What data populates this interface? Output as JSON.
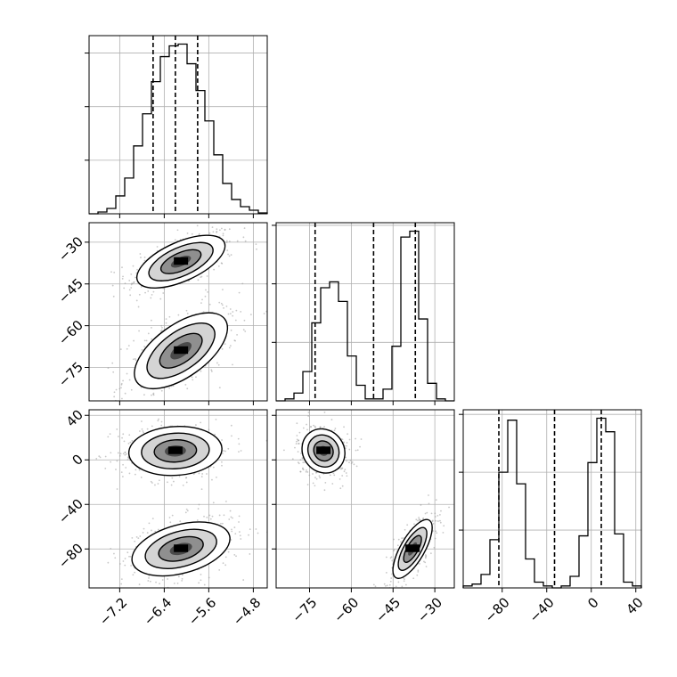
{
  "chart_data": {
    "type": "corner",
    "parameters": [
      "p0",
      "p1",
      "p2"
    ],
    "grid": true,
    "colors": {
      "line": "#000000",
      "grid": "#b0b0b0",
      "points": "#9a9a9a"
    },
    "histograms": [
      {
        "param": "p0",
        "xlim": [
          -7.75,
          -4.55
        ],
        "edges": [
          -7.75,
          -7.59,
          -7.43,
          -7.27,
          -7.11,
          -6.95,
          -6.79,
          -6.63,
          -6.47,
          -6.31,
          -6.15,
          -5.99,
          -5.83,
          -5.67,
          -5.51,
          -5.35,
          -5.19,
          -5.03,
          -4.87,
          -4.71,
          -4.55
        ],
        "counts": [
          0,
          0.01,
          0.03,
          0.1,
          0.2,
          0.38,
          0.56,
          0.74,
          0.88,
          0.94,
          0.95,
          0.84,
          0.69,
          0.52,
          0.33,
          0.17,
          0.08,
          0.04,
          0.02,
          0.005
        ],
        "quantiles": [
          -6.6,
          -6.2,
          -5.8
        ]
      },
      {
        "param": "p1",
        "xlim": [
          -87,
          -23
        ],
        "edges": [
          -87,
          -83.8,
          -80.6,
          -77.4,
          -74.2,
          -71,
          -67.8,
          -64.6,
          -61.4,
          -58.2,
          -55,
          -51.8,
          -48.6,
          -45.4,
          -42.2,
          -39,
          -35.8,
          -32.6,
          -29.4,
          -26.2,
          -23
        ],
        "counts": [
          0,
          0.01,
          0.04,
          0.15,
          0.4,
          0.58,
          0.61,
          0.51,
          0.23,
          0.08,
          0.01,
          0.01,
          0.06,
          0.28,
          0.84,
          0.87,
          0.42,
          0.09,
          0.01,
          0
        ],
        "quantiles": [
          -73,
          -52,
          -37
        ]
      },
      {
        "param": "p2",
        "xlim": [
          -115,
          45
        ],
        "edges": [
          -115,
          -107,
          -99,
          -91,
          -83,
          -75,
          -67,
          -59,
          -51,
          -43,
          -35,
          -27,
          -19,
          -11,
          -3,
          5,
          13,
          21,
          29,
          37,
          45
        ],
        "counts": [
          0.01,
          0.02,
          0.07,
          0.25,
          0.6,
          0.87,
          0.54,
          0.15,
          0.03,
          0.01,
          0,
          0.01,
          0.06,
          0.27,
          0.65,
          0.88,
          0.81,
          0.28,
          0.03,
          0.01
        ],
        "quantiles": [
          -83,
          -33,
          9
        ]
      }
    ],
    "scatter_panels": [
      {
        "x_param": "p0",
        "y_param": "p1",
        "xlim": [
          -7.75,
          -4.55
        ],
        "ylim": [
          -87,
          -23
        ],
        "modes": [
          {
            "cx": -6.1,
            "cy": -37,
            "sx": 0.36,
            "sy": 4.3,
            "rho": 0.6,
            "weight": 0.5
          },
          {
            "cx": -6.1,
            "cy": -69,
            "sx": 0.38,
            "sy": 6.2,
            "rho": 0.6,
            "weight": 0.5
          }
        ]
      },
      {
        "x_param": "p0",
        "y_param": "p2",
        "xlim": [
          -7.75,
          -4.55
        ],
        "ylim": [
          -115,
          45
        ],
        "modes": [
          {
            "cx": -6.2,
            "cy": 8,
            "sx": 0.38,
            "sy": 10,
            "rho": 0.08,
            "weight": 0.5
          },
          {
            "cx": -6.1,
            "cy": -80,
            "sx": 0.4,
            "sy": 11,
            "rho": 0.38,
            "weight": 0.5
          }
        ]
      },
      {
        "x_param": "p1",
        "y_param": "p2",
        "xlim": [
          -87,
          -23
        ],
        "ylim": [
          -115,
          45
        ],
        "modes": [
          {
            "cx": -70,
            "cy": 8,
            "sx": 3.5,
            "sy": 9,
            "rho": -0.1,
            "weight": 0.5
          },
          {
            "cx": -38,
            "cy": -80,
            "sx": 3.2,
            "sy": 12,
            "rho": 0.72,
            "weight": 0.5
          }
        ]
      }
    ],
    "axes": {
      "p0": {
        "ticks": [
          -7.2,
          -6.4,
          -5.6,
          -4.8
        ],
        "tick_labels": [
          "−7.2",
          "−6.4",
          "−5.6",
          "−4.8"
        ]
      },
      "p1": {
        "ticks": [
          -75,
          -60,
          -45,
          -30
        ],
        "tick_labels": [
          "−75",
          "−60",
          "−45",
          "−30"
        ]
      },
      "p2": {
        "ticks": [
          -80,
          -40,
          0,
          40
        ],
        "tick_labels": [
          "−80",
          "−40",
          "0",
          "40"
        ]
      }
    }
  }
}
